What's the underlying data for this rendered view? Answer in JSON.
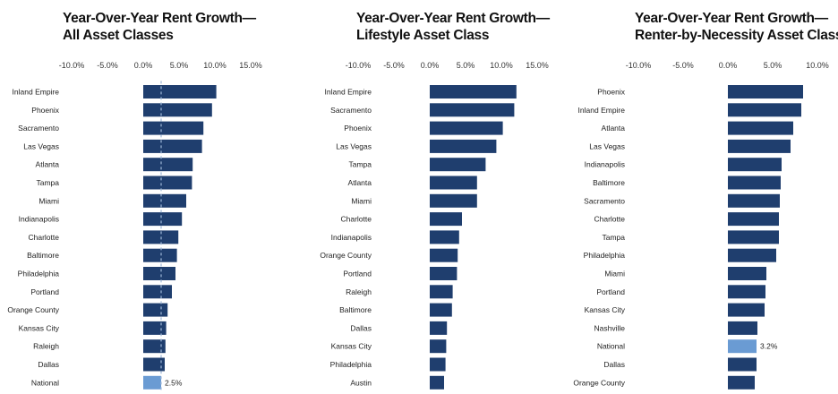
{
  "colors": {
    "bar": "#1f3e6e",
    "highlight": "#6a9bd3",
    "axis_text": "#333333",
    "label_text": "#222222"
  },
  "chart_data": [
    {
      "type": "bar",
      "orientation": "horizontal",
      "title_line1": "Year-Over-Year Rent Growth—",
      "title_line2": "All Asset Classes",
      "xlim": [
        -10,
        15
      ],
      "xticks": [
        "-10.0%",
        "-5.0%",
        "0.0%",
        "5.0%",
        "10.0%",
        "15.0%"
      ],
      "xtick_values": [
        -10,
        -5,
        0,
        5,
        10,
        15
      ],
      "grid": false,
      "reference_line": 2.5,
      "categories": [
        "Inland Empire",
        "Phoenix",
        "Sacramento",
        "Las Vegas",
        "Atlanta",
        "Tampa",
        "Miami",
        "Indianapolis",
        "Charlotte",
        "Baltimore",
        "Philadelphia",
        "Portland",
        "Orange County",
        "Kansas City",
        "Raleigh",
        "Dallas",
        "National"
      ],
      "values": [
        10.2,
        9.6,
        8.4,
        8.2,
        6.9,
        6.8,
        6.0,
        5.4,
        4.9,
        4.7,
        4.5,
        4.0,
        3.4,
        3.2,
        3.1,
        3.0,
        2.5
      ],
      "highlight": "National",
      "data_labels": [
        {
          "category": "National",
          "text": "2.5%"
        }
      ]
    },
    {
      "type": "bar",
      "orientation": "horizontal",
      "title_line1": "Year-Over-Year Rent Growth—",
      "title_line2": "Lifestyle Asset Class",
      "xlim": [
        -10,
        15
      ],
      "xticks": [
        "-10.0%",
        "-5.0%",
        "0.0%",
        "5.0%",
        "10.0%",
        "15.0%"
      ],
      "xtick_values": [
        -10,
        -5,
        0,
        5,
        10,
        15
      ],
      "grid": false,
      "categories": [
        "Inland Empire",
        "Sacramento",
        "Phoenix",
        "Las Vegas",
        "Tampa",
        "Atlanta",
        "Miami",
        "Charlotte",
        "Indianapolis",
        "Orange County",
        "Portland",
        "Raleigh",
        "Baltimore",
        "Dallas",
        "Kansas City",
        "Philadelphia",
        "Austin"
      ],
      "values": [
        12.1,
        11.8,
        10.2,
        9.3,
        7.8,
        6.6,
        6.6,
        4.5,
        4.1,
        3.9,
        3.8,
        3.2,
        3.1,
        2.4,
        2.3,
        2.2,
        2.0
      ],
      "data_labels": []
    },
    {
      "type": "bar",
      "orientation": "horizontal",
      "title_line1": "Year-Over-Year Rent Growth—",
      "title_line2": "Renter-by-Necessity Asset Class",
      "xlim": [
        -10,
        10
      ],
      "xticks": [
        "-10.0%",
        "-5.0%",
        "0.0%",
        "5.0%",
        "10.0%"
      ],
      "xtick_values": [
        -10,
        -5,
        0,
        5,
        10
      ],
      "grid": false,
      "categories": [
        "Phoenix",
        "Inland Empire",
        "Atlanta",
        "Las Vegas",
        "Indianapolis",
        "Baltimore",
        "Sacramento",
        "Charlotte",
        "Tampa",
        "Philadelphia",
        "Miami",
        "Portland",
        "Kansas City",
        "Nashville",
        "National",
        "Dallas",
        "Orange County"
      ],
      "values": [
        8.4,
        8.2,
        7.3,
        7.0,
        6.0,
        5.9,
        5.8,
        5.7,
        5.7,
        5.4,
        4.3,
        4.2,
        4.1,
        3.3,
        3.2,
        3.2,
        3.0
      ],
      "highlight": "National",
      "data_labels": [
        {
          "category": "National",
          "text": "3.2%"
        }
      ]
    }
  ]
}
